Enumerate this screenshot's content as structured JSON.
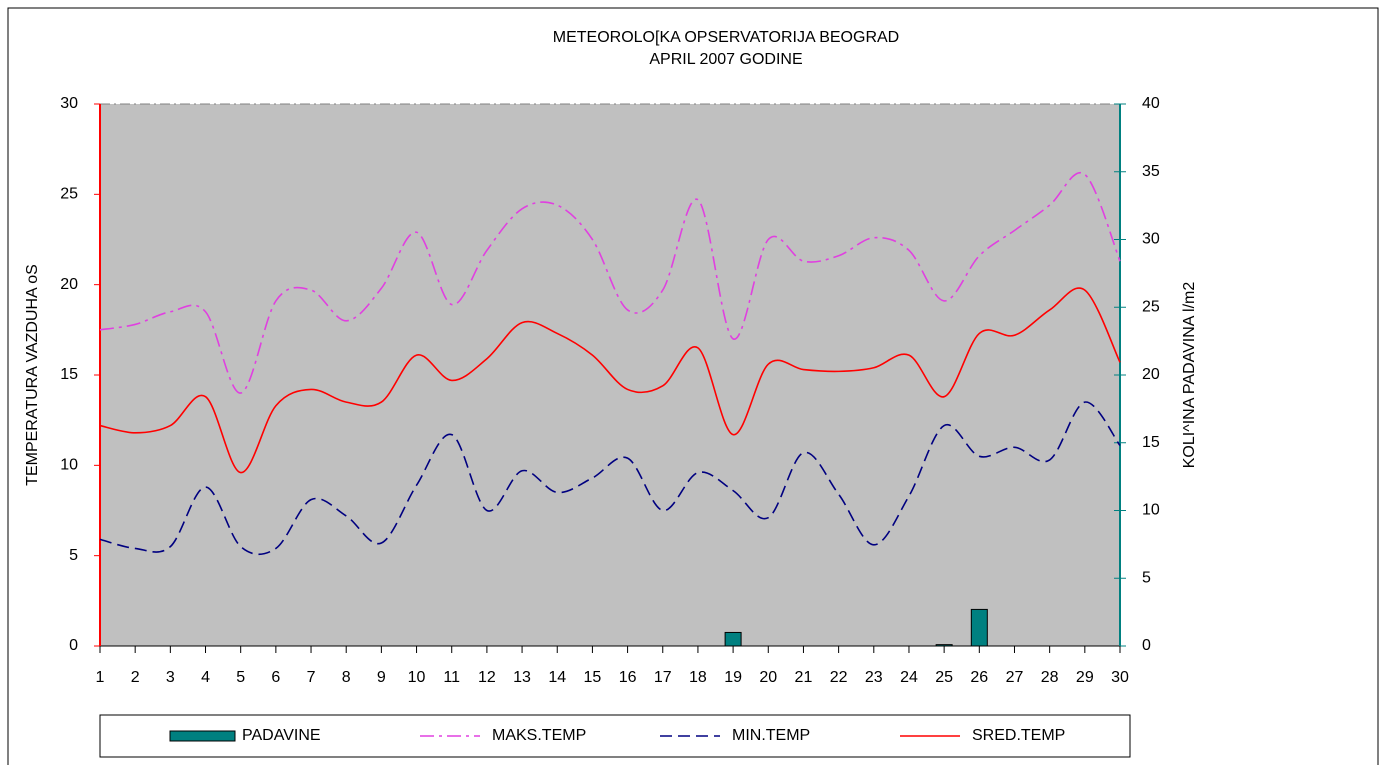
{
  "chart_data": {
    "type": "combo",
    "title": "METEOROLO[KA OPSERVATORIJA BEOGRAD",
    "subtitle": "APRIL 2007 GODINE",
    "y_label": "TEMPERATURA VAZDUHA oS",
    "y2_label": "KOLI^INA PADAVINA l/m2",
    "x": [
      1,
      2,
      3,
      4,
      5,
      6,
      7,
      8,
      9,
      10,
      11,
      12,
      13,
      14,
      15,
      16,
      17,
      18,
      19,
      20,
      21,
      22,
      23,
      24,
      25,
      26,
      27,
      28,
      29,
      30
    ],
    "xlim": [
      1,
      30
    ],
    "xticks": [
      1,
      2,
      3,
      4,
      5,
      6,
      7,
      8,
      9,
      10,
      11,
      12,
      13,
      14,
      15,
      16,
      17,
      18,
      19,
      20,
      21,
      22,
      23,
      24,
      25,
      26,
      27,
      28,
      29,
      30
    ],
    "ylim": [
      0,
      30
    ],
    "yticks": [
      0,
      5,
      10,
      15,
      20,
      25,
      30
    ],
    "y2lim": [
      0,
      40
    ],
    "y2ticks": [
      0,
      5,
      10,
      15,
      20,
      25,
      30,
      35,
      40
    ],
    "legend": "bottom",
    "series": [
      {
        "name": "PADAVINE",
        "kind": "bar",
        "axis": "y2",
        "color": "#008080",
        "values": [
          0,
          0,
          0,
          0,
          0,
          0,
          0,
          0,
          0,
          0,
          0,
          0,
          0,
          0,
          0,
          0,
          0,
          0,
          1.0,
          0,
          0,
          0,
          0,
          0,
          0.1,
          2.7,
          0,
          0,
          0,
          0
        ]
      },
      {
        "name": "MAKS.TEMP",
        "kind": "line",
        "dash": "14 5 3 5",
        "color": "#e040e0",
        "values": [
          17.5,
          17.8,
          18.5,
          18.5,
          14.0,
          19.1,
          19.7,
          18.0,
          19.8,
          22.9,
          18.9,
          21.9,
          24.2,
          24.4,
          22.5,
          18.6,
          19.7,
          24.7,
          17.0,
          22.5,
          21.3,
          21.6,
          22.6,
          21.9,
          19.1,
          21.6,
          23.0,
          24.4,
          26.1,
          21.3
        ]
      },
      {
        "name": "MIN.TEMP",
        "kind": "line",
        "dash": "12 6",
        "color": "#000080",
        "values": [
          5.9,
          5.4,
          5.5,
          8.8,
          5.5,
          5.4,
          8.1,
          7.2,
          5.7,
          8.9,
          11.7,
          7.5,
          9.7,
          8.5,
          9.3,
          10.4,
          7.5,
          9.6,
          8.6,
          7.1,
          10.7,
          8.4,
          5.6,
          8.3,
          12.2,
          10.5,
          11.0,
          10.3,
          13.5,
          11.1
        ]
      },
      {
        "name": "SRED.TEMP",
        "kind": "line",
        "dash": "none",
        "color": "#ff0000",
        "values": [
          12.2,
          11.8,
          12.2,
          13.8,
          9.6,
          13.3,
          14.2,
          13.5,
          13.5,
          16.1,
          14.7,
          15.9,
          17.9,
          17.3,
          16.1,
          14.2,
          14.4,
          16.5,
          11.7,
          15.6,
          15.3,
          15.2,
          15.4,
          16.1,
          13.8,
          17.3,
          17.2,
          18.6,
          19.7,
          15.7
        ]
      }
    ]
  }
}
